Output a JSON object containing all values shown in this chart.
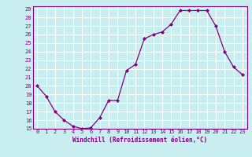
{
  "x": [
    0,
    1,
    2,
    3,
    4,
    5,
    6,
    7,
    8,
    9,
    10,
    11,
    12,
    13,
    14,
    15,
    16,
    17,
    18,
    19,
    20,
    21,
    22,
    23
  ],
  "y": [
    20,
    18.8,
    17.0,
    16.0,
    15.3,
    15.0,
    15.1,
    16.3,
    18.3,
    18.3,
    21.8,
    22.5,
    25.5,
    26.0,
    26.3,
    27.2,
    28.8,
    28.8,
    28.8,
    28.8,
    27.0,
    24.0,
    22.2,
    21.3
  ],
  "xlabel": "Windchill (Refroidissement éolien,°C)",
  "ylim": [
    15,
    29
  ],
  "xlim": [
    -0.5,
    23.5
  ],
  "yticks": [
    15,
    16,
    17,
    18,
    19,
    20,
    21,
    22,
    23,
    24,
    25,
    26,
    27,
    28,
    29
  ],
  "xticks": [
    0,
    1,
    2,
    3,
    4,
    5,
    6,
    7,
    8,
    9,
    10,
    11,
    12,
    13,
    14,
    15,
    16,
    17,
    18,
    19,
    20,
    21,
    22,
    23
  ],
  "line_color": "#800080",
  "marker": "D",
  "markersize": 2.0,
  "linewidth": 0.9,
  "bg_color": "#c8eef0",
  "grid_color": "#ffffff",
  "label_color": "#800080",
  "tick_color": "#800080",
  "tick_fontsize": 5.0,
  "xlabel_fontsize": 5.5
}
